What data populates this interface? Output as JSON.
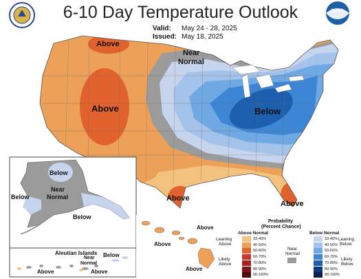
{
  "title": "6-10 Day Temperature Outlook",
  "valid": {
    "label": "Valid:",
    "value": "May 24 - 28, 2025"
  },
  "issued": {
    "label": "Issued:",
    "value": "May 18, 2025"
  },
  "logos": {
    "left": "noaa-commerce-seal-icon",
    "right": "noaa-logo-icon",
    "right_text": "NOAA"
  },
  "colors": {
    "above_33_40": "#f3c27e",
    "above_40_50": "#eda058",
    "above_50_60": "#e2622d",
    "above_60_70": "#c9382a",
    "above_70_80": "#a8211f",
    "above_80_90": "#7e1514",
    "above_90_100": "#4e0c0c",
    "near_normal": "#9b9b9b",
    "below_33_40": "#c7d4ee",
    "below_40_50": "#a4c3ea",
    "below_50_60": "#6fa8e3",
    "below_60_70": "#3d86d6",
    "below_70_80": "#1d5fae",
    "below_80_90": "#0d3b7e",
    "below_90_100": "#0a2250"
  },
  "map_labels": {
    "conus_above_north": "Above",
    "conus_above_west": "Above",
    "conus_near_normal_1": "Near",
    "conus_near_normal_2": "Normal",
    "conus_below": "Below",
    "conus_above_south": "Above",
    "conus_above_florida": "Above",
    "alaska_below": "Below",
    "alaska_near_1": "Near",
    "alaska_near_2": "Normal",
    "alaska_below_west": "Below",
    "alaska_below_se": "Below",
    "hawaii_above_1": "Above",
    "hawaii_above_2": "Above",
    "hawaii_above_3": "Above",
    "aleutian_title": "Aleutian Islands",
    "aleutian_near_1": "Near",
    "aleutian_near_2": "Normal",
    "aleutian_below": "Below",
    "aleutian_above_1": "Above",
    "aleutian_above_2": "Above"
  },
  "legend": {
    "title_1": "Probability",
    "title_2": "(Percent Chance)",
    "above_header": "Above Normal",
    "below_header": "Below Normal",
    "leaning_above_1": "Leaning",
    "leaning_above_2": "Above",
    "likely_above_1": "Likely",
    "likely_above_2": "Above",
    "near_1": "Near",
    "near_2": "Normal",
    "leaning_below_1": "Leaning",
    "leaning_below_2": "Below",
    "likely_below_1": "Likely",
    "likely_below_2": "Below",
    "ranges": [
      "33-40%",
      "40-50%",
      "50-60%",
      "60-70%",
      "70-80%",
      "80-90%",
      "90-100%"
    ]
  }
}
